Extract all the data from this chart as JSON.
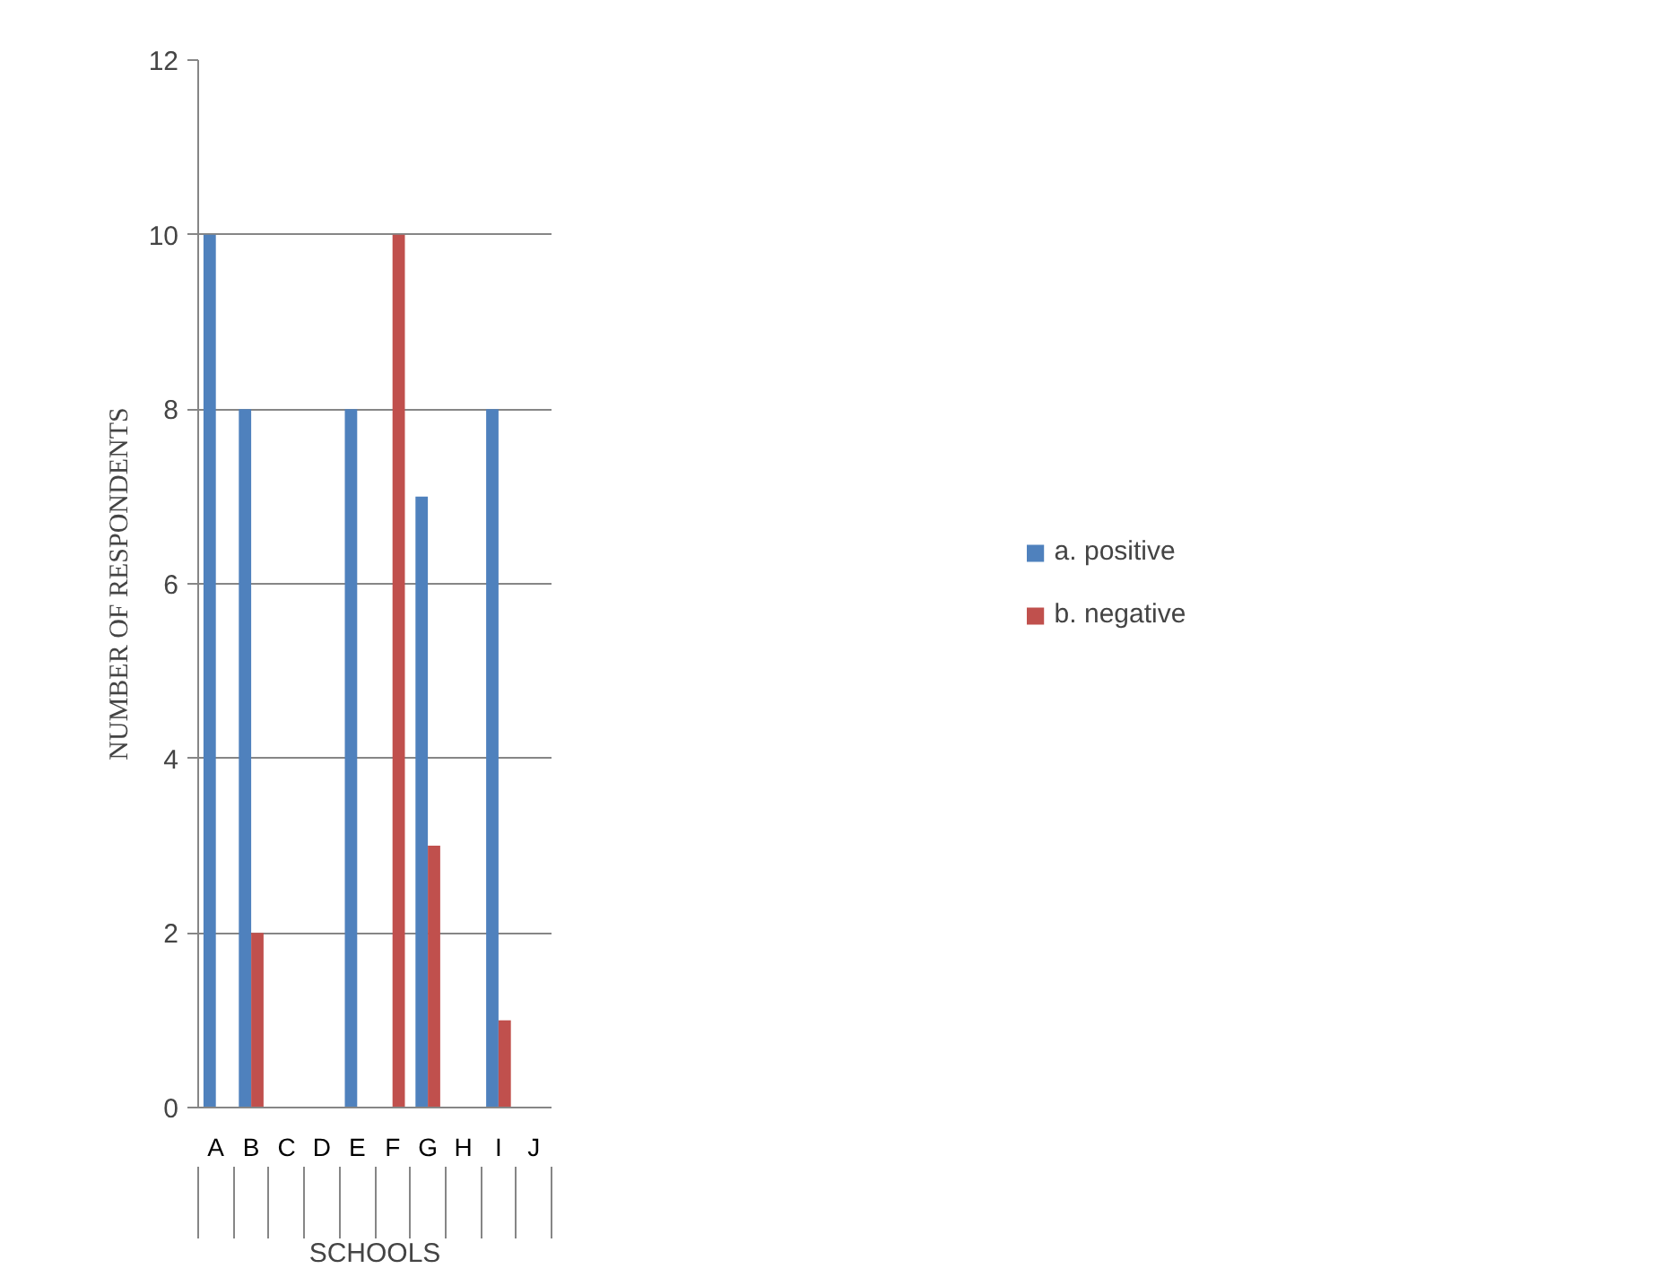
{
  "chart_data": {
    "type": "bar",
    "xlabel": "SCHOOLS",
    "ylabel": "NUMBER OF RESPONDENTS",
    "categories": [
      "A",
      "B",
      "C",
      "D",
      "E",
      "F",
      "G",
      "H",
      "I",
      "J"
    ],
    "series": [
      {
        "name": "a. positive",
        "color": "#4f81bd",
        "values": [
          10,
          8,
          0,
          0,
          8,
          0,
          7,
          0,
          8,
          0
        ]
      },
      {
        "name": "b. negative",
        "color": "#c0504d",
        "values": [
          0,
          2,
          0,
          0,
          0,
          10,
          3,
          0,
          1,
          0
        ]
      }
    ],
    "ylim": [
      0,
      12
    ],
    "yticks": [
      0,
      2,
      4,
      6,
      8,
      10,
      12
    ],
    "grid": "y",
    "legend": "right"
  }
}
